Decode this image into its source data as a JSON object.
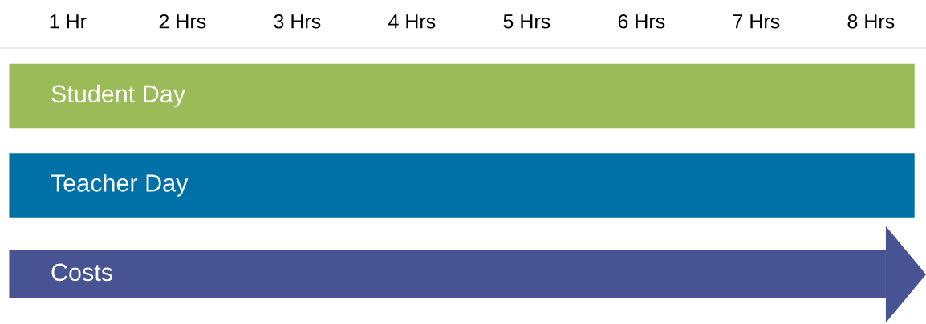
{
  "chart_data": {
    "type": "bar",
    "orientation": "horizontal",
    "categories": [
      "Student Day",
      "Teacher Day",
      "Costs"
    ],
    "base": [
      0.49,
      0.49,
      0.49
    ],
    "values": [
      7.89,
      7.89,
      7.64
    ],
    "colors": [
      "#9bbb59",
      "#0071a6",
      "#475393"
    ],
    "xticks": [
      {
        "value": 1,
        "label": "1 Hr"
      },
      {
        "value": 2,
        "label": "2 Hrs"
      },
      {
        "value": 3,
        "label": "3 Hrs"
      },
      {
        "value": 4,
        "label": "4 Hrs"
      },
      {
        "value": 5,
        "label": "5 Hrs"
      },
      {
        "value": 6,
        "label": "6 Hrs"
      },
      {
        "value": 7,
        "label": "7 Hrs"
      },
      {
        "value": 8,
        "label": "8 Hrs"
      }
    ],
    "xlim": [
      0.41,
      8.48
    ],
    "grid": false
  }
}
